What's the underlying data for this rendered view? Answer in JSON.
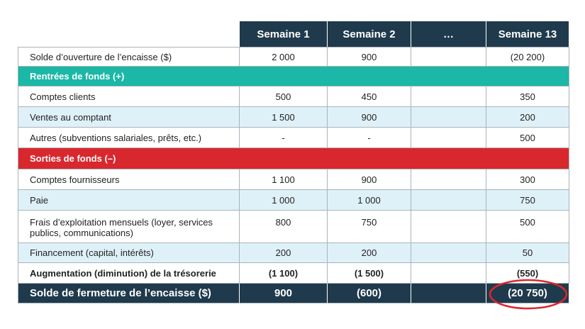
{
  "table": {
    "columns": [
      "Semaine 1",
      "Semaine 2",
      "…",
      "Semaine 13"
    ],
    "rows": [
      {
        "label": "Solde d’ouverture de l’encaisse ($)",
        "values": [
          "2 000",
          "900",
          "(20 200)"
        ]
      },
      {
        "label": "Rentrées de fonds (+)"
      },
      {
        "label": "Comptes clients",
        "values": [
          "500",
          "450",
          "350"
        ]
      },
      {
        "label": "Ventes au comptant",
        "values": [
          "1 500",
          "900",
          "200"
        ]
      },
      {
        "label": "Autres (subventions salariales, prêts, etc.)",
        "values": [
          "-",
          "-",
          "500"
        ]
      },
      {
        "label": "Sorties de fonds (–)"
      },
      {
        "label": "Comptes fournisseurs",
        "values": [
          "1 100",
          "900",
          "300"
        ]
      },
      {
        "label": "Paie",
        "values": [
          "1 000",
          "1 000",
          "750"
        ]
      },
      {
        "label": "Frais d’exploitation mensuels (loyer, services publics, communications)",
        "values": [
          "800",
          "750",
          "500"
        ]
      },
      {
        "label": "Financement (capital, intérêts)",
        "values": [
          "200",
          "200",
          "50"
        ]
      },
      {
        "label": "Augmentation (diminution) de la trésorerie",
        "values": [
          "(1 100)",
          "(1 500)",
          "(550)"
        ]
      },
      {
        "label": "Solde de fermeture de l’encaisse ($)",
        "values": [
          "900",
          "(600)",
          "(20 750)"
        ]
      }
    ]
  }
}
